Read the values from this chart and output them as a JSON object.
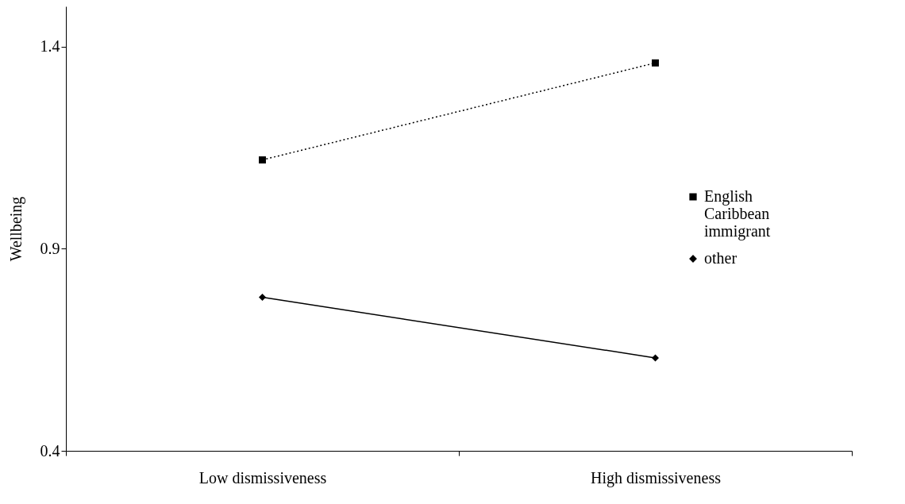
{
  "chart_data": {
    "type": "line",
    "ylabel": "Wellbeing",
    "categories": [
      "Low dismissiveness",
      "High dismissiveness"
    ],
    "ylim": [
      0.4,
      1.5
    ],
    "yticks": [
      0.4,
      0.9,
      1.4
    ],
    "grid": false,
    "legend": "right",
    "series": [
      {
        "name": "English Caribbean immigrant",
        "color": "#000000",
        "values": [
          1.12,
          1.36
        ],
        "marker": "square",
        "line_style": "dotted"
      },
      {
        "name": "other",
        "color": "#000000",
        "values": [
          0.78,
          0.63
        ],
        "marker": "diamond",
        "line_style": "solid"
      }
    ]
  }
}
